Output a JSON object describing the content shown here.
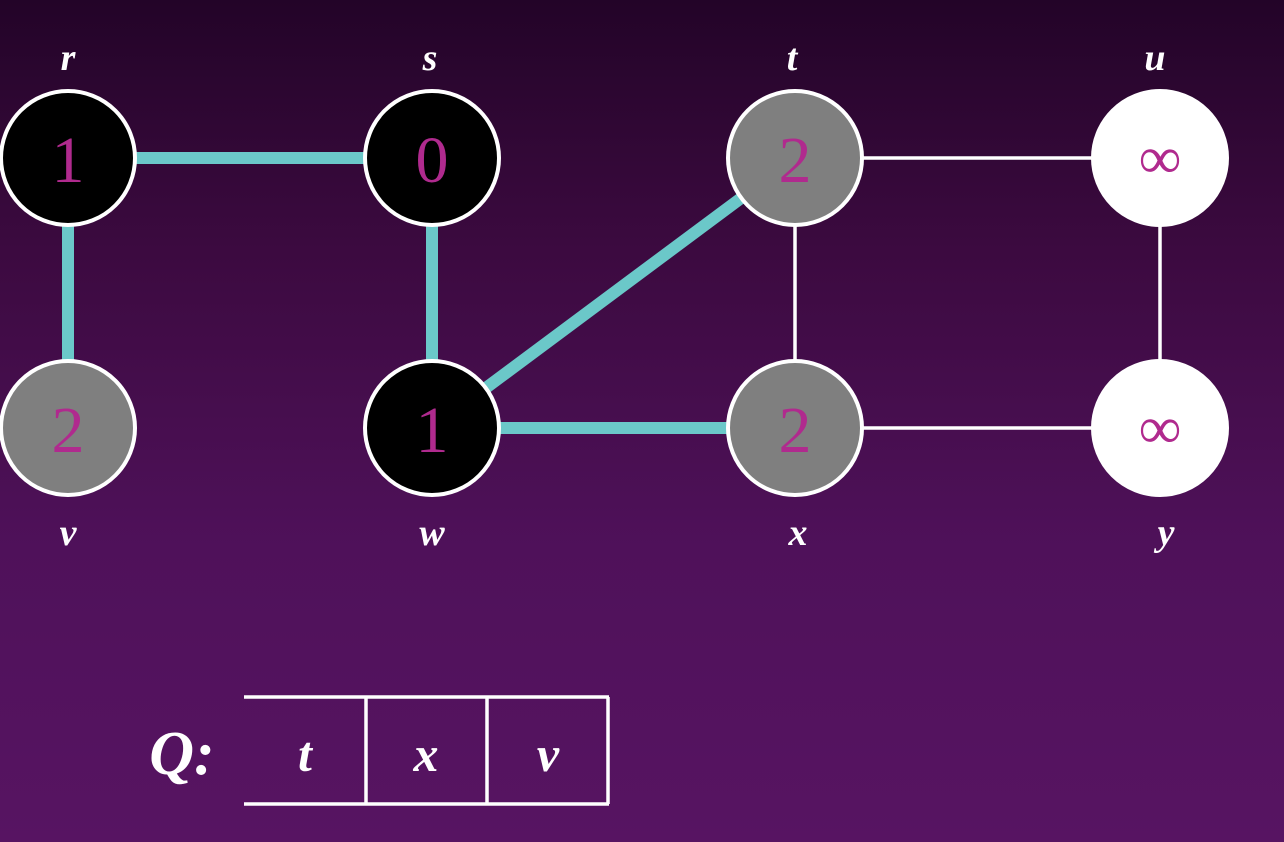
{
  "graph": {
    "colors": {
      "tree_edge": "#6bc8c9",
      "plain_edge": "#ffffff",
      "black_node": "#000000",
      "gray_node": "#7f7f7f",
      "white_node": "#ffffff",
      "distance_text": "#b02a8e"
    },
    "vertices": {
      "r": {
        "label": "r",
        "distance": "1",
        "state": "black"
      },
      "s": {
        "label": "s",
        "distance": "0",
        "state": "black"
      },
      "t": {
        "label": "t",
        "distance": "2",
        "state": "gray"
      },
      "u": {
        "label": "u",
        "distance": "∞",
        "state": "white"
      },
      "v": {
        "label": "v",
        "distance": "2",
        "state": "gray"
      },
      "w": {
        "label": "w",
        "distance": "1",
        "state": "black"
      },
      "x": {
        "label": "x",
        "distance": "2",
        "state": "gray"
      },
      "y": {
        "label": "y",
        "distance": "∞",
        "state": "white"
      }
    },
    "edges": [
      {
        "from": "r",
        "to": "s",
        "tree": true
      },
      {
        "from": "r",
        "to": "v",
        "tree": true
      },
      {
        "from": "s",
        "to": "w",
        "tree": true
      },
      {
        "from": "w",
        "to": "t",
        "tree": true
      },
      {
        "from": "w",
        "to": "x",
        "tree": true
      },
      {
        "from": "t",
        "to": "u",
        "tree": false
      },
      {
        "from": "t",
        "to": "x",
        "tree": false
      },
      {
        "from": "u",
        "to": "y",
        "tree": false
      },
      {
        "from": "x",
        "to": "y",
        "tree": false
      }
    ]
  },
  "queue": {
    "label": "Q:",
    "items": [
      "t",
      "x",
      "v"
    ]
  }
}
